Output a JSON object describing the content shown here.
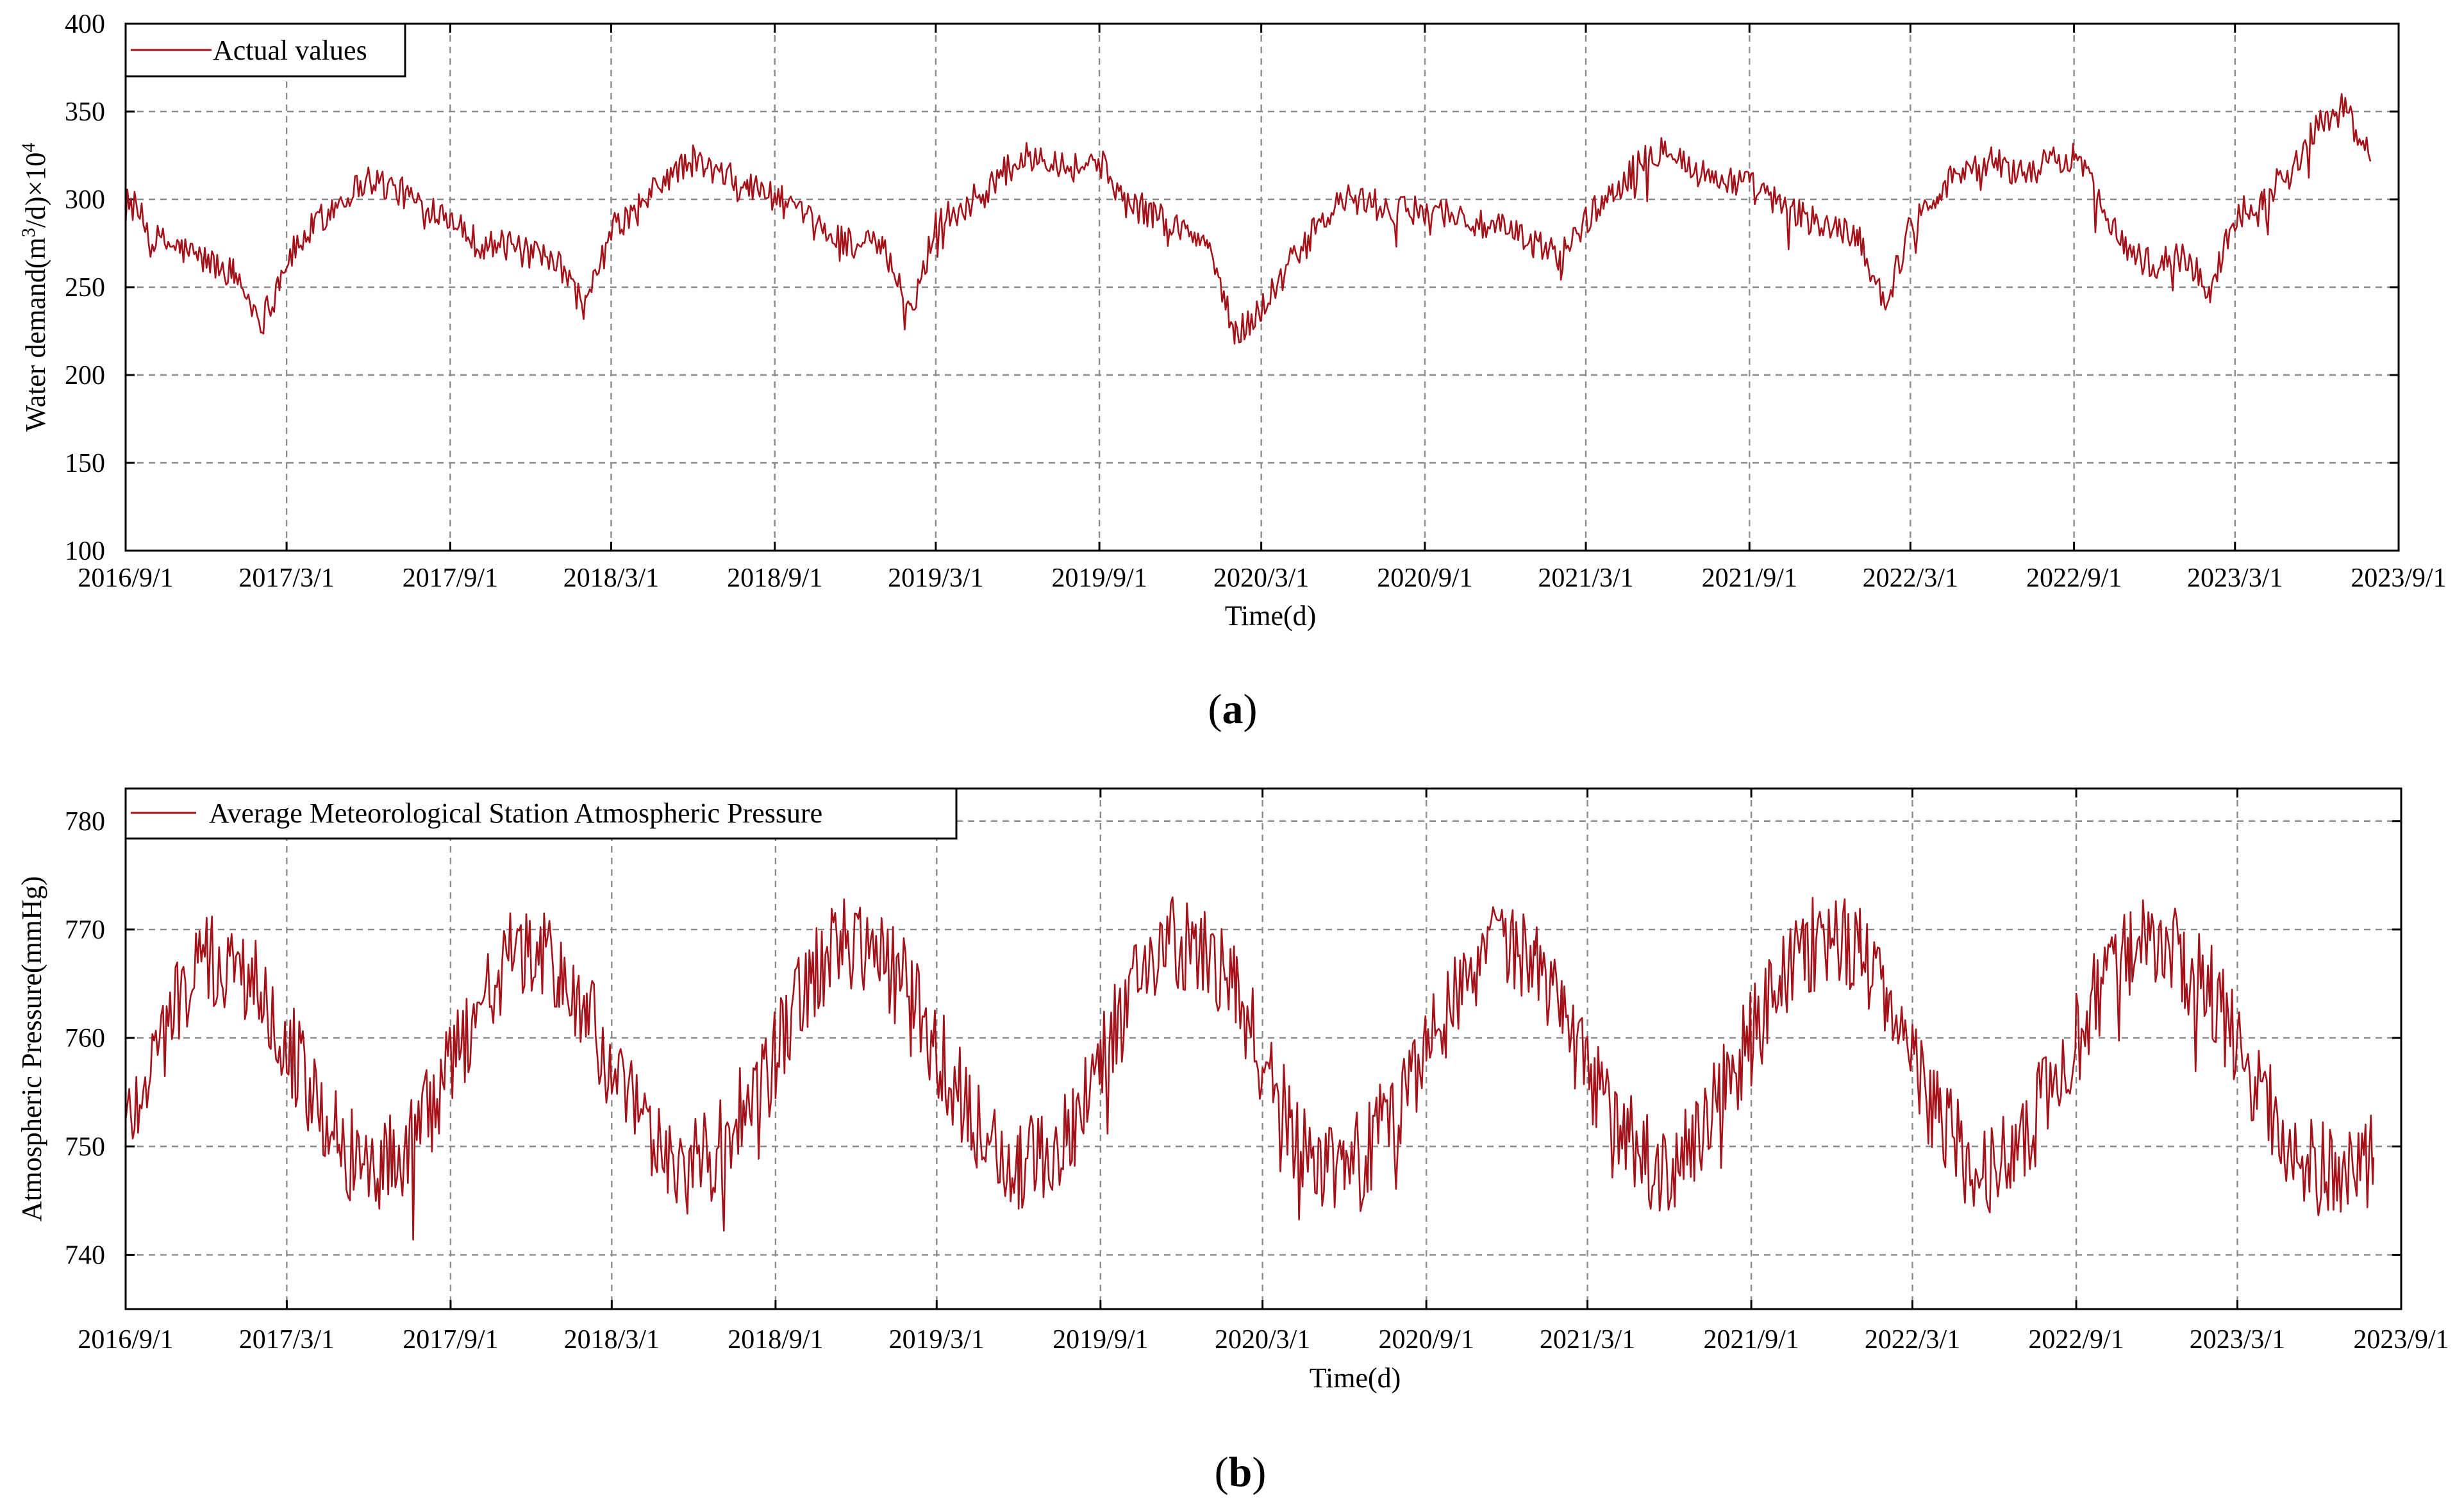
{
  "chart_data": [
    {
      "type": "line",
      "panel_label": "a",
      "xlabel": "Time(d)",
      "ylabel_main": "Water demand(m",
      "ylabel_sup": "3",
      "ylabel_mid": "/d)×10",
      "ylabel_sup2": "4",
      "ylim": [
        100,
        400
      ],
      "yticks": [
        100,
        150,
        200,
        250,
        300,
        350,
        400
      ],
      "x_range": [
        "2016-09-01",
        "2023-09-01"
      ],
      "x_tick_labels": [
        "2016/9/1",
        "2017/3/1",
        "2017/9/1",
        "2018/3/1",
        "2018/9/1",
        "2019/3/1",
        "2019/9/1",
        "2020/3/1",
        "2020/9/1",
        "2021/3/1",
        "2021/9/1",
        "2022/3/1",
        "2022/9/1",
        "2023/3/1",
        "2023/9/1"
      ],
      "grid": true,
      "legend_position": "top-left",
      "series": [
        {
          "name": "Actual values",
          "color": "#a6121a",
          "x_dates": [
            "2016-09-01",
            "2016-10-01",
            "2016-11-01",
            "2016-12-01",
            "2017-01-01",
            "2017-02-01",
            "2017-03-01",
            "2017-04-01",
            "2017-05-01",
            "2017-06-01",
            "2017-07-01",
            "2017-08-01",
            "2017-09-01",
            "2017-10-01",
            "2017-11-01",
            "2017-12-01",
            "2018-01-01",
            "2018-02-01",
            "2018-03-01",
            "2018-04-01",
            "2018-05-01",
            "2018-06-01",
            "2018-07-01",
            "2018-08-01",
            "2018-09-01",
            "2018-10-01",
            "2018-11-01",
            "2018-12-01",
            "2019-01-01",
            "2019-02-01",
            "2019-03-01",
            "2019-04-01",
            "2019-05-01",
            "2019-06-01",
            "2019-07-01",
            "2019-08-01",
            "2019-09-01",
            "2019-10-01",
            "2019-11-01",
            "2019-12-01",
            "2020-01-01",
            "2020-02-01",
            "2020-03-01",
            "2020-04-01",
            "2020-05-01",
            "2020-06-01",
            "2020-07-01",
            "2020-08-01",
            "2020-09-01",
            "2020-10-01",
            "2020-11-01",
            "2020-12-01",
            "2021-01-01",
            "2021-02-01",
            "2021-03-01",
            "2021-04-01",
            "2021-05-01",
            "2021-06-01",
            "2021-07-01",
            "2021-08-01",
            "2021-09-01",
            "2021-10-01",
            "2021-11-01",
            "2021-12-01",
            "2022-01-01",
            "2022-02-01",
            "2022-03-01",
            "2022-04-01",
            "2022-05-01",
            "2022-06-01",
            "2022-07-01",
            "2022-08-01",
            "2022-09-01",
            "2022-10-01",
            "2022-11-01",
            "2022-12-01",
            "2023-01-01",
            "2023-02-01",
            "2023-03-01",
            "2023-04-01",
            "2023-05-01",
            "2023-06-01",
            "2023-07-01",
            "2023-08-01"
          ],
          "values": [
            305,
            278,
            272,
            265,
            258,
            230,
            265,
            285,
            300,
            312,
            306,
            297,
            292,
            275,
            274,
            268,
            262,
            238,
            282,
            295,
            312,
            322,
            314,
            308,
            302,
            290,
            280,
            275,
            272,
            235,
            288,
            295,
            308,
            322,
            326,
            318,
            322,
            298,
            292,
            283,
            275,
            222,
            238,
            262,
            282,
            300,
            298,
            292,
            295,
            292,
            285,
            282,
            275,
            268,
            288,
            305,
            320,
            332,
            315,
            312,
            308,
            298,
            290,
            284,
            280,
            240,
            285,
            305,
            318,
            322,
            315,
            320,
            325,
            300,
            270,
            262,
            268,
            248,
            290,
            302,
            315,
            342,
            352,
            322
          ],
          "noise_amplitude": 9
        }
      ]
    },
    {
      "type": "line",
      "panel_label": "b",
      "xlabel": "Time(d)",
      "ylabel": "Atmospheric Pressure(mmHg)",
      "ylim": [
        735,
        783
      ],
      "yticks": [
        740,
        750,
        760,
        770,
        780
      ],
      "x_range": [
        "2016-09-01",
        "2023-09-01"
      ],
      "x_tick_labels": [
        "2016/9/1",
        "2017/3/1",
        "2017/9/1",
        "2018/3/1",
        "2018/9/1",
        "2019/3/1",
        "2019/9/1",
        "2020/3/1",
        "2020/9/1",
        "2021/3/1",
        "2021/9/1",
        "2022/3/1",
        "2022/9/1",
        "2023/3/1",
        "2023/9/1"
      ],
      "grid": true,
      "legend_position": "top-left",
      "series": [
        {
          "name": "Average Meteorological Station Atmospheric Pressure",
          "color": "#a6121a",
          "x_dates": [
            "2016-09-01",
            "2016-10-01",
            "2016-11-01",
            "2016-12-01",
            "2017-01-01",
            "2017-02-01",
            "2017-03-01",
            "2017-04-01",
            "2017-05-01",
            "2017-06-01",
            "2017-07-01",
            "2017-08-01",
            "2017-09-01",
            "2017-10-01",
            "2017-11-01",
            "2017-12-01",
            "2018-01-01",
            "2018-02-01",
            "2018-03-01",
            "2018-04-01",
            "2018-05-01",
            "2018-06-01",
            "2018-07-01",
            "2018-08-01",
            "2018-09-01",
            "2018-10-01",
            "2018-11-01",
            "2018-12-01",
            "2019-01-01",
            "2019-02-01",
            "2019-03-01",
            "2019-04-01",
            "2019-05-01",
            "2019-06-01",
            "2019-07-01",
            "2019-08-01",
            "2019-09-01",
            "2019-10-01",
            "2019-11-01",
            "2019-12-01",
            "2020-01-01",
            "2020-02-01",
            "2020-03-01",
            "2020-04-01",
            "2020-05-01",
            "2020-06-01",
            "2020-07-01",
            "2020-08-01",
            "2020-09-01",
            "2020-10-01",
            "2020-11-01",
            "2020-12-01",
            "2021-01-01",
            "2021-02-01",
            "2021-03-01",
            "2021-04-01",
            "2021-05-01",
            "2021-06-01",
            "2021-07-01",
            "2021-08-01",
            "2021-09-01",
            "2021-10-01",
            "2021-11-01",
            "2021-12-01",
            "2022-01-01",
            "2022-02-01",
            "2022-03-01",
            "2022-04-01",
            "2022-05-01",
            "2022-06-01",
            "2022-07-01",
            "2022-08-01",
            "2022-09-01",
            "2022-10-01",
            "2022-11-01",
            "2022-12-01",
            "2023-01-01",
            "2023-02-01",
            "2023-03-01",
            "2023-04-01",
            "2023-05-01",
            "2023-06-01",
            "2023-07-01",
            "2023-08-01"
          ],
          "values": [
            752,
            758,
            764,
            767,
            766,
            765,
            760,
            754,
            750,
            748,
            749,
            752,
            757,
            763,
            767,
            768,
            766,
            762,
            757,
            752,
            749,
            748,
            750,
            754,
            758,
            764,
            768,
            769,
            767,
            764,
            759,
            754,
            750,
            748,
            749,
            752,
            758,
            764,
            768,
            769,
            767,
            764,
            758,
            752,
            749,
            748,
            750,
            754,
            759,
            764,
            768,
            769,
            766,
            762,
            757,
            752,
            749,
            748,
            750,
            755,
            760,
            765,
            768,
            770,
            768,
            764,
            758,
            752,
            749,
            748,
            750,
            755,
            760,
            765,
            768,
            769,
            767,
            764,
            759,
            754,
            750,
            748,
            747,
            749
          ],
          "noise_amplitude": 4.5
        }
      ]
    }
  ]
}
